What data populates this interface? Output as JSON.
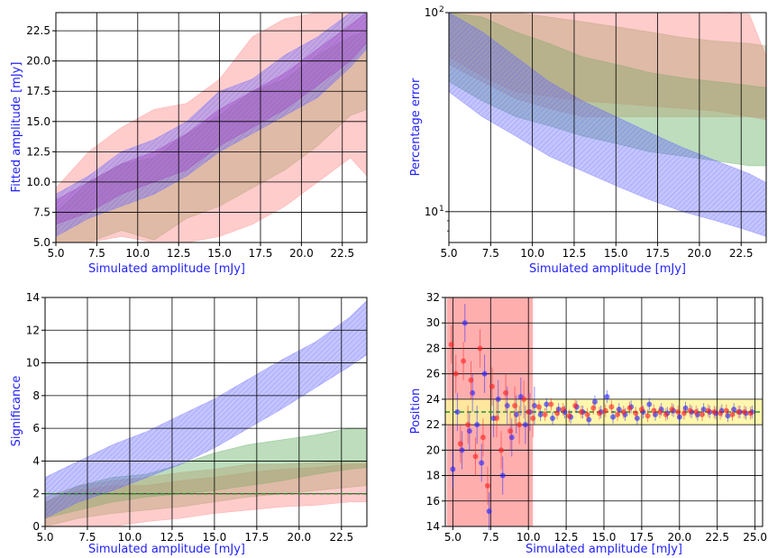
{
  "colors": {
    "axis_label": "#1f1fff",
    "blue_band": "#6b6bff",
    "red_band": "#ff8080",
    "green_band": "#5aaa5a",
    "purple_band": "#a040c0",
    "tan_band": "#b0a070",
    "yellow_band": "#fff59a",
    "dashed_line": "#2e8b2e",
    "red_region": "#ff6b6b",
    "points_blue": "#2020ff",
    "points_red": "#ff2020"
  },
  "chart_data": [
    {
      "type": "area",
      "panel": "top-left",
      "xlabel": "Simulated amplitude [mJy]",
      "ylabel": "Fitted amplitude [mJy]",
      "xlim": [
        5.0,
        24.0
      ],
      "ylim": [
        5.0,
        24.0
      ],
      "xticks": [
        "5.0",
        "7.5",
        "10.0",
        "12.5",
        "15.0",
        "17.5",
        "20.0",
        "22.5"
      ],
      "yticks": [
        "5.0",
        "7.5",
        "10.0",
        "12.5",
        "15.0",
        "17.5",
        "20.0",
        "22.5"
      ],
      "grid": true,
      "x": [
        5,
        7,
        9,
        11,
        13,
        15,
        17,
        19,
        21,
        23,
        24
      ],
      "series": [
        {
          "color_key": "red_band",
          "lower": [
            4.8,
            5.0,
            5.5,
            5.0,
            5.0,
            5.5,
            6.5,
            8.0,
            10.0,
            12.0,
            10.5
          ],
          "upper": [
            9.5,
            12.5,
            14.5,
            16.0,
            16.5,
            18.5,
            22.0,
            23.5,
            24.0,
            24.0,
            24.0
          ]
        },
        {
          "color_key": "tan_band",
          "lower": [
            5.0,
            5.0,
            6.0,
            5.2,
            7.0,
            8.0,
            9.5,
            11.0,
            13.0,
            15.5,
            16.0
          ],
          "upper": [
            7.5,
            10.0,
            11.5,
            12.0,
            14.0,
            15.5,
            17.5,
            18.5,
            20.5,
            22.0,
            22.5
          ]
        },
        {
          "color_key": "blue_band",
          "lower": [
            5.5,
            7.0,
            8.0,
            9.0,
            10.5,
            12.5,
            14.0,
            15.5,
            17.0,
            19.5,
            21.0
          ],
          "upper": [
            9.0,
            10.5,
            12.5,
            13.5,
            15.0,
            17.5,
            18.5,
            20.5,
            22.0,
            24.0,
            24.0
          ]
        },
        {
          "color_key": "purple_band",
          "lower": [
            6.5,
            7.5,
            9.0,
            10.0,
            11.0,
            13.0,
            14.5,
            16.0,
            18.0,
            20.0,
            21.5
          ],
          "upper": [
            8.5,
            10.0,
            11.5,
            12.5,
            14.0,
            16.0,
            17.5,
            19.0,
            21.0,
            23.0,
            24.0
          ]
        }
      ]
    },
    {
      "type": "area",
      "panel": "top-right",
      "xlabel": "Simulated amplitude [mJy]",
      "ylabel": "Percentage error",
      "xlim": [
        5.0,
        24.0
      ],
      "ylim": [
        7.0,
        100.0
      ],
      "yscale": "log",
      "xticks": [
        "5.0",
        "7.5",
        "10.0",
        "12.5",
        "15.0",
        "17.5",
        "20.0",
        "22.5"
      ],
      "yticks": [
        "10",
        "10"
      ],
      "yticks_sup": [
        "1",
        "2"
      ],
      "grid": true,
      "x": [
        5,
        7,
        9,
        11,
        13,
        15,
        17,
        19,
        21,
        23,
        24
      ],
      "series": [
        {
          "color_key": "red_band",
          "lower": [
            60,
            48,
            40,
            38,
            36,
            35,
            34,
            33,
            32,
            30,
            29
          ],
          "upper": [
            100,
            100,
            100,
            100,
            100,
            100,
            100,
            100,
            100,
            98,
            60
          ]
        },
        {
          "color_key": "green_band",
          "lower": [
            45,
            36,
            30,
            27,
            24,
            22,
            20,
            19,
            18,
            17,
            17
          ],
          "upper": [
            100,
            95,
            80,
            70,
            60,
            55,
            50,
            47,
            45,
            43,
            42
          ]
        },
        {
          "color_key": "tan_band",
          "lower": [
            55,
            45,
            37,
            33,
            30,
            30,
            30,
            30,
            30,
            30,
            30
          ],
          "upper": [
            100,
            100,
            100,
            95,
            90,
            85,
            80,
            75,
            72,
            70,
            68
          ]
        },
        {
          "color_key": "blue_band",
          "lower": [
            40,
            30,
            24,
            19,
            16,
            13.5,
            11.5,
            10,
            9,
            8,
            7.5
          ],
          "upper": [
            100,
            80,
            60,
            45,
            36,
            30,
            25,
            21,
            18,
            15.5,
            14
          ]
        }
      ]
    },
    {
      "type": "area",
      "panel": "bottom-left",
      "xlabel": "Simulated amplitude [mJy]",
      "ylabel": "Significance",
      "xlim": [
        5.0,
        24.0
      ],
      "ylim": [
        0,
        14
      ],
      "xticks": [
        "5.0",
        "7.5",
        "10.0",
        "12.5",
        "15.0",
        "17.5",
        "20.0",
        "22.5"
      ],
      "yticks": [
        "0",
        "2",
        "4",
        "6",
        "8",
        "10",
        "12",
        "14"
      ],
      "grid": true,
      "hline": 2.0,
      "x": [
        5,
        7,
        9,
        11,
        13,
        15,
        17,
        19,
        21,
        23,
        24
      ],
      "series": [
        {
          "color_key": "red_band",
          "lower": [
            0.0,
            0.0,
            0.0,
            0.3,
            0.5,
            0.8,
            1.0,
            1.2,
            1.3,
            1.5,
            1.5
          ],
          "upper": [
            1.5,
            2.2,
            2.5,
            2.5,
            2.8,
            3.0,
            3.3,
            3.5,
            3.6,
            3.8,
            3.8
          ]
        },
        {
          "color_key": "green_band",
          "lower": [
            0.5,
            1.0,
            1.5,
            1.8,
            2.0,
            2.2,
            2.5,
            2.8,
            3.2,
            3.5,
            3.6
          ],
          "upper": [
            1.5,
            2.5,
            3.0,
            3.2,
            3.8,
            4.5,
            5.0,
            5.3,
            5.6,
            6.0,
            6.0
          ]
        },
        {
          "color_key": "tan_band",
          "lower": [
            0.0,
            0.5,
            0.8,
            1.0,
            1.2,
            1.5,
            1.8,
            2.0,
            2.2,
            2.4,
            2.5
          ],
          "upper": [
            1.8,
            2.5,
            2.8,
            3.0,
            3.3,
            3.5,
            3.8,
            3.8,
            3.9,
            4.0,
            4.0
          ]
        },
        {
          "color_key": "blue_band",
          "lower": [
            0.5,
            1.5,
            2.2,
            3.0,
            3.8,
            4.8,
            6.0,
            7.2,
            8.5,
            9.8,
            10.5
          ],
          "upper": [
            3.0,
            4.0,
            5.0,
            5.8,
            6.8,
            7.8,
            9.0,
            10.2,
            11.3,
            12.8,
            13.8
          ]
        }
      ]
    },
    {
      "type": "scatter",
      "panel": "bottom-right",
      "xlabel": "Simulated amplitude [mJy]",
      "ylabel": "Position",
      "xlim": [
        4.5,
        25.5
      ],
      "ylim": [
        14,
        32
      ],
      "xticks": [
        "5.0",
        "7.5",
        "10.0",
        "12.5",
        "15.0",
        "17.5",
        "20.0",
        "22.5",
        "25.0"
      ],
      "yticks": [
        "14",
        "16",
        "18",
        "20",
        "22",
        "24",
        "26",
        "28",
        "30",
        "32"
      ],
      "grid": true,
      "hline": 23.0,
      "yellow_band": [
        22.0,
        24.0
      ],
      "red_region": [
        4.6,
        10.3
      ],
      "series": [
        {
          "name": "",
          "color_key": "points_blue",
          "x": [
            5.0,
            5.3,
            5.6,
            5.8,
            6.1,
            6.3,
            6.6,
            6.9,
            7.1,
            7.4,
            7.7,
            8.0,
            8.3,
            8.6,
            8.9,
            9.2,
            9.5,
            9.8,
            10.1,
            10.4,
            10.8,
            11.2,
            11.6,
            12.0,
            12.4,
            12.8,
            13.2,
            13.6,
            14.0,
            14.4,
            14.8,
            15.2,
            15.6,
            16.0,
            16.4,
            16.8,
            17.2,
            17.6,
            18.0,
            18.4,
            18.8,
            19.2,
            19.6,
            20.0,
            20.4,
            20.8,
            21.2,
            21.6,
            22.0,
            22.4,
            22.8,
            23.2,
            23.6,
            24.0,
            24.4,
            24.8
          ],
          "y": [
            18.5,
            23.0,
            20.0,
            30.0,
            21.5,
            24.5,
            22.0,
            19.0,
            26.0,
            15.2,
            22.5,
            24.0,
            18.0,
            23.5,
            21.0,
            22.8,
            24.2,
            22.0,
            23.0,
            23.5,
            22.8,
            23.6,
            22.5,
            23.2,
            23.0,
            22.6,
            23.4,
            23.0,
            22.4,
            23.8,
            23.0,
            24.2,
            22.6,
            23.2,
            22.8,
            23.4,
            22.5,
            23.0,
            23.6,
            22.8,
            23.2,
            22.9,
            23.1,
            22.6,
            23.3,
            23.0,
            22.8,
            23.2,
            23.0,
            22.9,
            23.1,
            22.7,
            23.2,
            23.0,
            22.9,
            23.0
          ]
        },
        {
          "name": "",
          "color_key": "points_red",
          "x": [
            4.9,
            5.2,
            5.5,
            5.7,
            6.0,
            6.2,
            6.5,
            6.8,
            7.0,
            7.3,
            7.6,
            7.9,
            8.2,
            8.5,
            8.8,
            9.1,
            9.4,
            9.7,
            10.0,
            10.3,
            10.7,
            11.1,
            11.5,
            11.9,
            12.3,
            12.7,
            13.1,
            13.5,
            13.9,
            14.3,
            14.7,
            15.1,
            15.5,
            15.9,
            16.3,
            16.7,
            17.1,
            17.5,
            17.9,
            18.3,
            18.7,
            19.1,
            19.5,
            19.9,
            20.3,
            20.7,
            21.1,
            21.5,
            21.9,
            22.3,
            22.7,
            23.1,
            23.5,
            23.9,
            24.3,
            24.7
          ],
          "y": [
            28.3,
            26.0,
            20.5,
            27.0,
            22.0,
            25.5,
            19.5,
            28.0,
            21.0,
            17.2,
            25.0,
            22.5,
            20.0,
            24.5,
            21.5,
            23.5,
            22.0,
            24.0,
            23.0,
            22.5,
            23.4,
            22.8,
            23.6,
            22.9,
            23.2,
            22.7,
            23.5,
            23.0,
            22.8,
            23.3,
            22.9,
            23.1,
            23.4,
            22.8,
            23.0,
            23.3,
            22.9,
            23.2,
            22.7,
            23.1,
            23.0,
            22.8,
            23.2,
            23.0,
            22.9,
            23.1,
            23.0,
            22.8,
            23.1,
            23.0,
            22.9,
            23.1,
            22.8,
            23.0,
            23.0,
            22.9
          ]
        }
      ]
    }
  ]
}
